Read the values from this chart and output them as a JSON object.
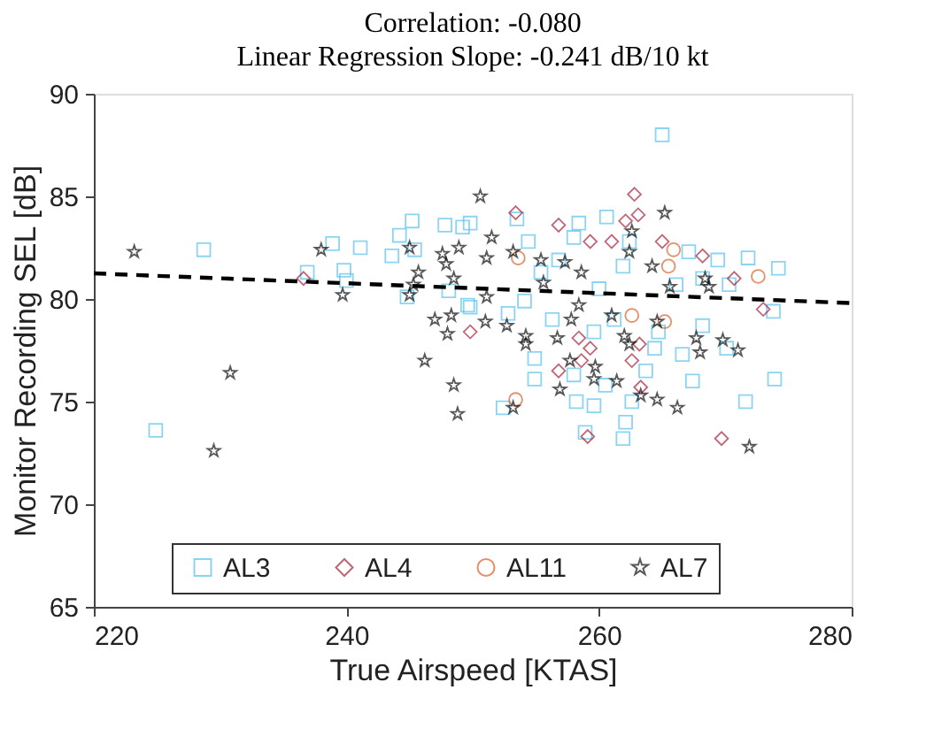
{
  "chart_data": {
    "type": "scatter",
    "title": "Correlation: -0.080",
    "subtitle": "Linear Regression Slope: -0.241 dB/10 kt",
    "xlabel": "True Airspeed [KTAS]",
    "ylabel": "Monitor Recording SEL [dB]",
    "xlim": [
      220,
      280
    ],
    "xticks": [
      220,
      240,
      260,
      280
    ],
    "ylim": [
      65,
      90
    ],
    "yticks": [
      65,
      70,
      75,
      80,
      85,
      90
    ],
    "grid": false,
    "legend": "bottom",
    "series": [
      {
        "name": "AL3",
        "color": "#4dbeee",
        "marker": "square",
        "x": [
          228.7,
          224.9,
          236.9,
          238.9,
          239.8,
          240.0,
          241.1,
          243.6,
          244.2,
          245.2,
          245.4,
          247.8,
          249.2,
          244.8,
          248.1,
          249.6,
          265.0,
          249.8,
          253.5,
          258.4,
          260.6,
          254.4,
          258.0,
          262.4,
          267.1,
          269.4,
          271.8,
          274.2,
          270.3,
          273.8,
          254.1,
          252.8,
          254.9,
          254.9,
          258.0,
          260.5,
          258.2,
          259.6,
          252.4,
          262.1,
          261.9,
          258.9,
          262.6,
          263.7,
          264.4,
          268.2,
          266.6,
          267.4,
          270.1,
          271.6,
          273.9,
          268.2,
          255.4,
          256.8,
          260.0,
          261.9,
          261.2,
          259.6,
          256.3,
          264.7,
          266.1,
          249.8
        ],
        "values": [
          82.4,
          73.6,
          81.3,
          82.7,
          81.4,
          80.9,
          82.5,
          82.1,
          83.1,
          83.8,
          82.4,
          83.6,
          83.5,
          80.1,
          80.4,
          79.7,
          88.0,
          83.7,
          83.9,
          83.7,
          84.0,
          82.8,
          83.0,
          82.8,
          82.3,
          81.9,
          82.0,
          81.5,
          80.7,
          79.4,
          79.9,
          79.3,
          77.1,
          76.1,
          76.3,
          75.8,
          75.0,
          74.8,
          74.7,
          74.0,
          73.2,
          73.5,
          75.0,
          76.5,
          77.6,
          78.7,
          77.3,
          76.0,
          77.6,
          75.0,
          76.1,
          81.0,
          81.3,
          81.9,
          80.5,
          81.6,
          79.0,
          78.4,
          79.0,
          78.4,
          80.7,
          79.6
        ]
      },
      {
        "name": "AL4",
        "color": "#a2142f",
        "marker": "diamond",
        "x": [
          236.6,
          253.4,
          256.8,
          262.8,
          263.1,
          262.1,
          261.0,
          259.3,
          265.0,
          268.2,
          270.7,
          273.0,
          258.4,
          259.3,
          258.6,
          256.8,
          262.6,
          263.2,
          263.3,
          259.1,
          269.7,
          249.8
        ],
        "values": [
          81.0,
          84.2,
          83.6,
          85.1,
          84.1,
          83.8,
          82.8,
          82.8,
          82.8,
          82.1,
          81.0,
          79.5,
          78.1,
          77.6,
          77.0,
          76.5,
          77.0,
          77.8,
          75.7,
          73.3,
          73.2,
          78.4
        ]
      },
      {
        "name": "AL11",
        "color": "#d95319",
        "marker": "circle",
        "x": [
          253.6,
          265.5,
          265.9,
          272.6,
          253.4,
          262.6,
          265.2
        ],
        "values": [
          82.0,
          81.6,
          82.4,
          81.1,
          75.1,
          79.2,
          78.9
        ]
      },
      {
        "name": "AL7",
        "color": "#000000",
        "marker": "star",
        "x": [
          223.2,
          230.8,
          229.5,
          238.0,
          239.7,
          245.0,
          245.7,
          245.3,
          245.0,
          247.0,
          248.3,
          248.0,
          246.2,
          248.5,
          248.8,
          247.6,
          248.9,
          247.9,
          248.5,
          250.6,
          265.2,
          251.5,
          253.2,
          251.1,
          255.4,
          257.3,
          255.6,
          258.6,
          262.4,
          262.6,
          264.2,
          265.6,
          268.4,
          268.7,
          251.1,
          252.7,
          251.0,
          254.2,
          254.2,
          256.7,
          257.8,
          258.4,
          261.0,
          262.4,
          262.0,
          264.6,
          267.7,
          268.0,
          269.8,
          271.0,
          257.7,
          259.7,
          259.6,
          261.4,
          256.9,
          263.3,
          264.6,
          266.2,
          253.2,
          271.9
        ],
        "values": [
          82.3,
          76.4,
          72.6,
          82.4,
          80.2,
          82.5,
          81.3,
          80.7,
          80.2,
          79.0,
          79.2,
          78.3,
          77.0,
          75.8,
          74.4,
          82.2,
          82.5,
          81.7,
          81.0,
          85.0,
          84.2,
          83.0,
          82.3,
          82.0,
          81.9,
          81.8,
          80.8,
          81.3,
          82.3,
          83.3,
          81.6,
          80.6,
          81.0,
          80.6,
          80.1,
          78.7,
          78.9,
          78.2,
          77.8,
          78.1,
          79.0,
          79.7,
          79.2,
          77.8,
          78.2,
          78.9,
          78.1,
          77.4,
          78.0,
          77.5,
          77.0,
          76.7,
          76.1,
          76.0,
          75.6,
          75.3,
          75.1,
          74.7,
          74.7,
          72.8
        ]
      },
      {
        "type": "line",
        "color": "#000000",
        "line_style": "dashed",
        "x": [
          220,
          280
        ],
        "values": [
          81.25,
          79.8
        ]
      }
    ]
  }
}
